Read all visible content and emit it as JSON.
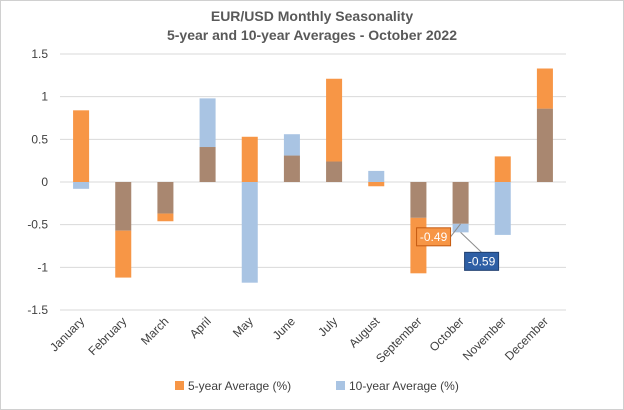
{
  "chart_data": {
    "type": "bar",
    "title": "EUR/USD Monthly Seasonality",
    "subtitle": "5-year and 10-year Averages - October 2022",
    "categories": [
      "January",
      "February",
      "March",
      "April",
      "May",
      "June",
      "July",
      "August",
      "September",
      "October",
      "November",
      "December"
    ],
    "series": [
      {
        "name": "5-year Average (%)",
        "color": "#F79646",
        "values": [
          0.84,
          -1.12,
          -0.46,
          0.41,
          0.53,
          0.31,
          1.21,
          -0.05,
          -1.07,
          -0.49,
          0.3,
          1.33
        ]
      },
      {
        "name": "10-year Average (%)",
        "color": "#A9C4E3",
        "values": [
          -0.08,
          -0.57,
          -0.37,
          0.98,
          -1.18,
          0.56,
          0.24,
          0.13,
          -0.42,
          -0.59,
          -0.62,
          0.86
        ]
      }
    ],
    "overlap_color": "#A98770",
    "ylim": [
      -1.5,
      1.5
    ],
    "yticks": [
      "1.5",
      "1",
      "0.5",
      "0",
      "-0.5",
      "-1",
      "-1.5"
    ],
    "ytick_values": [
      1.5,
      1,
      0.5,
      0,
      -0.5,
      -1,
      -1.5
    ],
    "grid": true,
    "legend_position": "bottom",
    "annotations": [
      {
        "text": "-0.49",
        "series": 0,
        "category": "October",
        "color": "#F79646"
      },
      {
        "text": "-0.59",
        "series": 1,
        "category": "October",
        "color": "#2E5FA5"
      }
    ]
  }
}
